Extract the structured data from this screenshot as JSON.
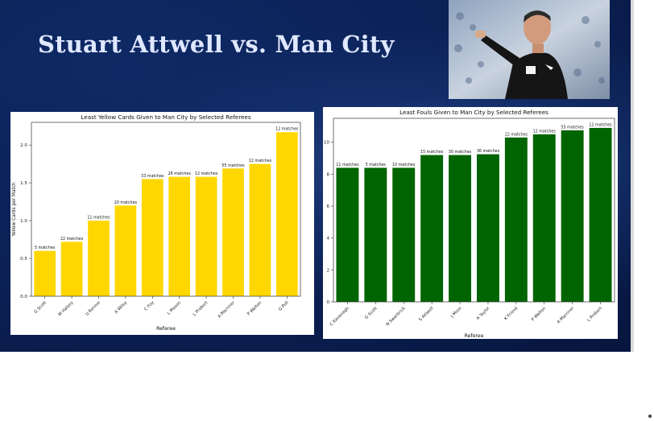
{
  "slide": {
    "title": "Stuart Attwell vs. Man City"
  },
  "colors": {
    "background": "#0b1f52",
    "title": "#dfe8ff",
    "yellow_bars": "#ffd700",
    "green_bars": "#006400"
  },
  "chart_data": [
    {
      "type": "bar",
      "title": "Least Yellow Cards Given to Man City by Selected Referees",
      "xlabel": "Referee",
      "ylabel": "Yellow Cards per Match",
      "categories": [
        "G Scott",
        "M Halsey",
        "U Rennie",
        "A Wiley",
        "C Foy",
        "L Mason",
        "L Probert",
        "A Marriner",
        "P Walton",
        "G Poll"
      ],
      "values": [
        0.6,
        0.72,
        1.0,
        1.2,
        1.55,
        1.58,
        1.58,
        1.69,
        1.75,
        2.17
      ],
      "bar_labels": [
        "5 matches",
        "22 matches",
        "11 matches",
        "20 matches",
        "33 matches",
        "26 matches",
        "12 matches",
        "55 matches",
        "12 matches",
        "12 matches"
      ],
      "ylim": [
        0,
        2.3
      ],
      "yticks": [
        0.0,
        0.5,
        1.0,
        1.5,
        2.0
      ],
      "ytick_labels": [
        "0.0",
        "0.5",
        "1.0",
        "1.5",
        "2.0"
      ],
      "color": "#ffd700",
      "grid": false
    },
    {
      "type": "bar",
      "title": "Least Fouls Given to Man City by Selected Referees",
      "xlabel": "Referee",
      "ylabel": "",
      "categories": [
        "C Kavanagh",
        "G Scott",
        "N Swarbrick",
        "S Attwell",
        "J Moss",
        "A Taylor",
        "K Friend",
        "P Walton",
        "A Marriner",
        "L Probert"
      ],
      "values": [
        8.4,
        8.4,
        8.4,
        9.2,
        9.2,
        9.25,
        10.3,
        10.5,
        10.75,
        10.9
      ],
      "bar_labels": [
        "11 matches",
        "5 matches",
        "10 matches",
        "15 matches",
        "30 matches",
        "36 matches",
        "22 matches",
        "12 matches",
        "55 matches",
        "12 matches"
      ],
      "ylim": [
        0,
        11.5
      ],
      "yticks": [
        0,
        2,
        4,
        6,
        8,
        10
      ],
      "ytick_labels": [
        "0",
        "2",
        "4",
        "6",
        "8",
        "10"
      ],
      "color": "#006400",
      "grid": false
    }
  ]
}
